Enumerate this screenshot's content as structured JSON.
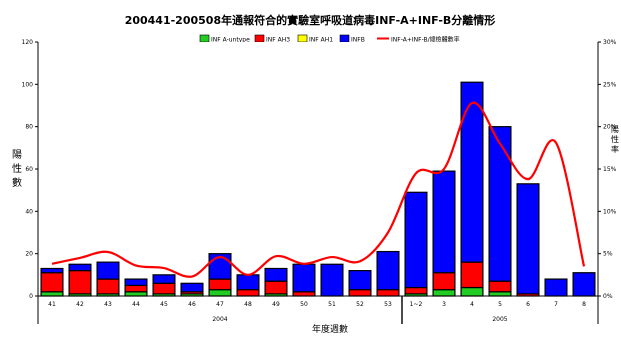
{
  "chart_data": {
    "type": "bar",
    "title": "200441-200508年通報符合的實驗室呼吸道病毒INF-A+INF-B分離情形",
    "xlabel": "年度週數",
    "ylabel": "陽性數",
    "y2label": "陽性率",
    "ylim": [
      0,
      120
    ],
    "y2lim": [
      0,
      30
    ],
    "yticks": [
      "0",
      "20",
      "40",
      "60",
      "80",
      "100",
      "120"
    ],
    "y2ticks": [
      "0%",
      "5%",
      "10%",
      "15%",
      "20%",
      "25%",
      "30%"
    ],
    "legend_position": "top",
    "categories": [
      "41",
      "42",
      "43",
      "44",
      "45",
      "46",
      "47",
      "48",
      "49",
      "50",
      "51",
      "52",
      "53",
      "1~2",
      "3",
      "4",
      "5",
      "6",
      "7",
      "8"
    ],
    "year_groups": [
      {
        "label": "2004",
        "from": 0,
        "to": 12
      },
      {
        "label": "2005",
        "from": 13,
        "to": 19
      }
    ],
    "series": [
      {
        "name": "INF A-untype",
        "color": "#22cc22",
        "values": [
          2,
          1,
          1,
          2,
          1,
          1,
          3,
          0,
          1,
          0,
          0,
          0,
          0,
          1,
          3,
          4,
          2,
          0,
          0,
          0
        ]
      },
      {
        "name": "INF AH3",
        "color": "#ff0000",
        "values": [
          9,
          11,
          7,
          3,
          5,
          1,
          5,
          3,
          6,
          2,
          0,
          3,
          3,
          3,
          8,
          12,
          5,
          1,
          0,
          0
        ]
      },
      {
        "name": "INF AH1",
        "color": "#ffff00",
        "values": [
          0,
          0,
          0,
          0,
          0,
          0,
          0,
          0,
          0,
          0,
          0,
          0,
          0,
          0,
          0,
          0,
          0,
          0,
          0,
          0
        ]
      },
      {
        "name": "INFB",
        "color": "#0000ff",
        "values": [
          2,
          3,
          8,
          3,
          4,
          4,
          12,
          7,
          6,
          13,
          15,
          9,
          18,
          45,
          48,
          85,
          73,
          52,
          8,
          11
        ]
      }
    ],
    "line": {
      "name": "INF-A+INF-B/總檢體數率",
      "color": "#ff0000",
      "values": [
        3.8,
        4.5,
        5.2,
        3.6,
        3.3,
        2.3,
        4.6,
        2.5,
        4.7,
        3.8,
        4.6,
        4.1,
        7.5,
        14.5,
        15.0,
        22.8,
        18.0,
        13.8,
        18.1,
        3.5
      ]
    }
  }
}
